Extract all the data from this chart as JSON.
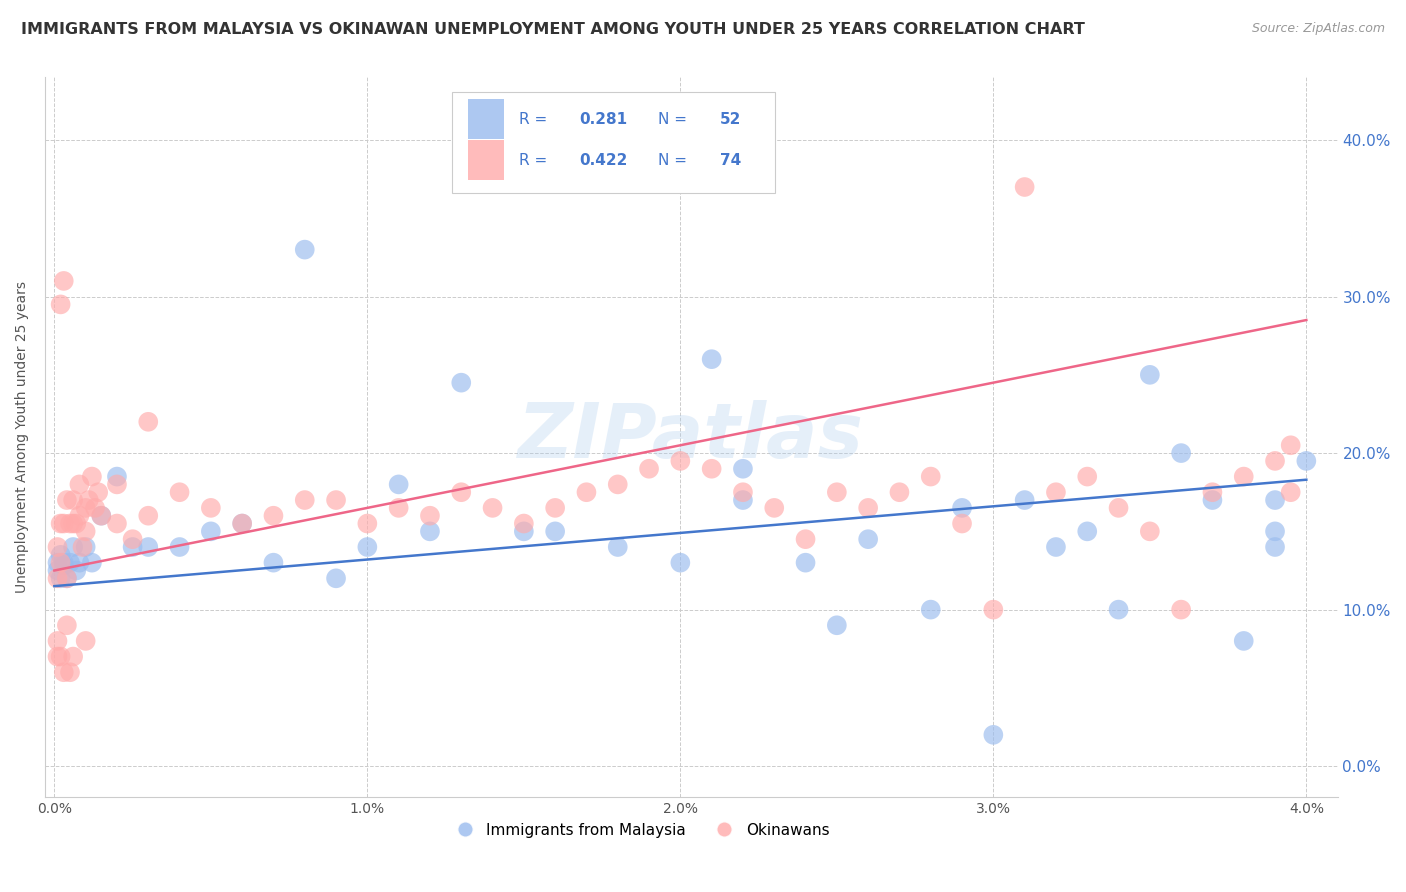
{
  "title": "IMMIGRANTS FROM MALAYSIA VS OKINAWAN UNEMPLOYMENT AMONG YOUTH UNDER 25 YEARS CORRELATION CHART",
  "source": "Source: ZipAtlas.com",
  "ylabel": "Unemployment Among Youth under 25 years",
  "xlim": [
    0.0,
    0.04
  ],
  "ylim": [
    -0.02,
    0.44
  ],
  "legend1_r": "0.281",
  "legend1_n": "52",
  "legend2_r": "0.422",
  "legend2_n": "74",
  "blue_color": "#99BBEE",
  "pink_color": "#FFAAAA",
  "line_blue": "#4477CC",
  "line_pink": "#EE6688",
  "text_blue": "#4477CC",
  "watermark": "ZIPatlas",
  "yticks": [
    0.0,
    0.1,
    0.2,
    0.3,
    0.4
  ],
  "xticks": [
    0.0,
    0.01,
    0.02,
    0.03,
    0.04
  ],
  "blue_x": [
    0.0001,
    0.0001,
    0.0002,
    0.0002,
    0.0003,
    0.0003,
    0.0004,
    0.0005,
    0.0006,
    0.0007,
    0.0008,
    0.001,
    0.0012,
    0.0015,
    0.002,
    0.0025,
    0.003,
    0.004,
    0.005,
    0.006,
    0.007,
    0.008,
    0.009,
    0.01,
    0.011,
    0.012,
    0.013,
    0.015,
    0.016,
    0.018,
    0.02,
    0.021,
    0.022,
    0.024,
    0.025,
    0.026,
    0.028,
    0.029,
    0.03,
    0.032,
    0.033,
    0.034,
    0.035,
    0.036,
    0.037,
    0.038,
    0.039,
    0.039,
    0.039,
    0.04,
    0.022,
    0.031
  ],
  "blue_y": [
    0.125,
    0.13,
    0.12,
    0.135,
    0.13,
    0.128,
    0.12,
    0.13,
    0.14,
    0.125,
    0.13,
    0.14,
    0.13,
    0.16,
    0.185,
    0.14,
    0.14,
    0.14,
    0.15,
    0.155,
    0.13,
    0.33,
    0.12,
    0.14,
    0.18,
    0.15,
    0.245,
    0.15,
    0.15,
    0.14,
    0.13,
    0.26,
    0.19,
    0.13,
    0.09,
    0.145,
    0.1,
    0.165,
    0.02,
    0.14,
    0.15,
    0.1,
    0.25,
    0.2,
    0.17,
    0.08,
    0.17,
    0.15,
    0.14,
    0.195,
    0.17,
    0.17
  ],
  "pink_x": [
    0.0001,
    0.0001,
    0.0001,
    0.0002,
    0.0002,
    0.0002,
    0.0003,
    0.0003,
    0.0004,
    0.0004,
    0.0005,
    0.0005,
    0.0006,
    0.0006,
    0.0007,
    0.0008,
    0.0008,
    0.0009,
    0.001,
    0.001,
    0.0011,
    0.0012,
    0.0013,
    0.0014,
    0.0015,
    0.002,
    0.002,
    0.0025,
    0.003,
    0.003,
    0.004,
    0.005,
    0.006,
    0.007,
    0.008,
    0.009,
    0.01,
    0.011,
    0.012,
    0.013,
    0.014,
    0.015,
    0.016,
    0.017,
    0.018,
    0.019,
    0.02,
    0.021,
    0.022,
    0.023,
    0.024,
    0.025,
    0.026,
    0.027,
    0.028,
    0.029,
    0.03,
    0.031,
    0.032,
    0.033,
    0.034,
    0.035,
    0.036,
    0.037,
    0.038,
    0.039,
    0.0395,
    0.0395,
    0.0001,
    0.0002,
    0.0003,
    0.0004,
    0.0006,
    0.001
  ],
  "pink_y": [
    0.14,
    0.12,
    0.07,
    0.295,
    0.155,
    0.13,
    0.31,
    0.155,
    0.17,
    0.12,
    0.06,
    0.155,
    0.17,
    0.155,
    0.155,
    0.18,
    0.16,
    0.14,
    0.15,
    0.165,
    0.17,
    0.185,
    0.165,
    0.175,
    0.16,
    0.18,
    0.155,
    0.145,
    0.22,
    0.16,
    0.175,
    0.165,
    0.155,
    0.16,
    0.17,
    0.17,
    0.155,
    0.165,
    0.16,
    0.175,
    0.165,
    0.155,
    0.165,
    0.175,
    0.18,
    0.19,
    0.195,
    0.19,
    0.175,
    0.165,
    0.145,
    0.175,
    0.165,
    0.175,
    0.185,
    0.155,
    0.1,
    0.37,
    0.175,
    0.185,
    0.165,
    0.15,
    0.1,
    0.175,
    0.185,
    0.195,
    0.205,
    0.175,
    0.08,
    0.07,
    0.06,
    0.09,
    0.07,
    0.08
  ]
}
